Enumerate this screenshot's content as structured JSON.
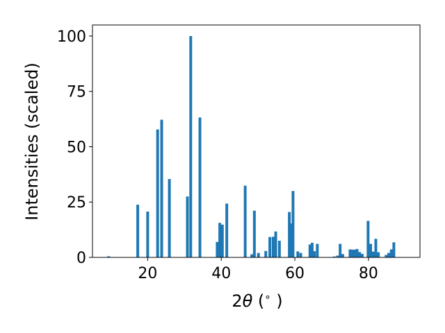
{
  "chart_data": {
    "type": "bar",
    "xlabel_parts": {
      "pre": "2",
      "theta": "θ",
      "post": " (",
      "deg": "∘",
      "close": " )"
    },
    "ylabel": "Intensities (scaled)",
    "xlim": [
      5,
      94
    ],
    "ylim": [
      0,
      105
    ],
    "xticks": [
      20,
      40,
      60,
      80
    ],
    "yticks": [
      0,
      25,
      50,
      75,
      100
    ],
    "bar_width": 0.75,
    "bar_color": "#1f77b4",
    "grid": false,
    "legend": "none",
    "x": [
      9.4,
      17.3,
      20.0,
      22.7,
      23.8,
      25.9,
      30.8,
      31.7,
      34.2,
      38.9,
      39.6,
      40.3,
      41.5,
      46.5,
      48.3,
      49.0,
      50.1,
      52.1,
      53.2,
      54.1,
      54.8,
      55.8,
      58.5,
      59.0,
      59.5,
      60.8,
      61.6,
      64.1,
      64.7,
      65.3,
      66.1,
      70.7,
      71.6,
      72.3,
      73.0,
      75.0,
      75.6,
      76.3,
      76.9,
      77.6,
      78.3,
      79.9,
      80.6,
      81.3,
      82.0,
      82.7,
      84.8,
      85.5,
      86.2,
      86.9
    ],
    "values": [
      0.5,
      23.8,
      20.7,
      57.8,
      62.2,
      35.4,
      27.5,
      100.0,
      63.2,
      7.0,
      15.6,
      14.8,
      24.3,
      32.4,
      1.4,
      21.1,
      2.0,
      2.9,
      9.2,
      9.3,
      11.7,
      7.5,
      20.5,
      15.3,
      30.0,
      2.7,
      2.0,
      5.8,
      6.6,
      2.8,
      6.1,
      0.4,
      0.8,
      6.1,
      1.5,
      3.6,
      3.5,
      3.5,
      3.8,
      2.4,
      1.6,
      16.5,
      6.1,
      2.6,
      8.4,
      2.3,
      1.1,
      2.0,
      3.6,
      6.8
    ]
  }
}
